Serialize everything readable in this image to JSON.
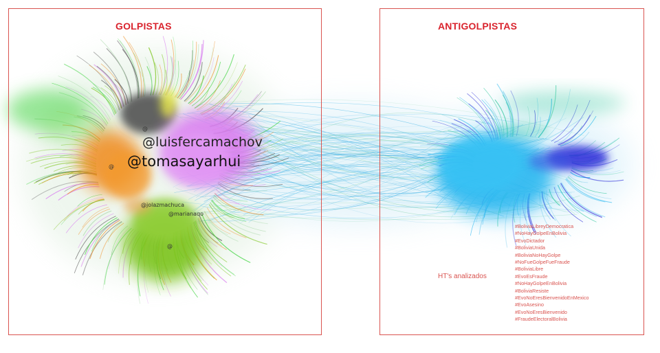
{
  "panels": {
    "left": {
      "title": "GOLPISTAS"
    },
    "right": {
      "title": "ANTIGOLPISTAS"
    }
  },
  "handles": {
    "luis": "@luisfercamachov",
    "tomas": "@tomasayarhui",
    "small": [
      "@",
      "@",
      "@jolazmachuca",
      "@marianaqo",
      "@"
    ]
  },
  "hashtags_label": "HT's analizados",
  "hashtags": [
    "#BoliviaLibreyDemocratica",
    "#NoHayGolpeEnBolivia",
    "#EvoDictador",
    "#BoliviaUnida",
    "#BoliviaNoHayGolpe",
    "#NoFueGolpeFueFraude",
    "#BoliviaLibre",
    "#EvoEsFraude",
    "#NoHayGolpeEnBolivia",
    "#BoliviaResiste",
    "#EvoNoEresBienvenidoEnMexico",
    "#EvoAsesino",
    "#EvoNoEresBienvenido",
    "#FraudeElectoralBolivia"
  ],
  "colors": {
    "frame": "#d9534f",
    "title": "#d9232d",
    "community_magenta": "#d97ff0",
    "community_orange": "#f08a1c",
    "community_dark": "#4a4a4a",
    "community_green_lime": "#7cc41c",
    "community_green_bright": "#4ad64a",
    "community_yellow": "#e8e84a",
    "community_cyan": "#2bb8f0",
    "community_blue": "#2a2ad8",
    "community_teal": "#3ac9a0"
  }
}
